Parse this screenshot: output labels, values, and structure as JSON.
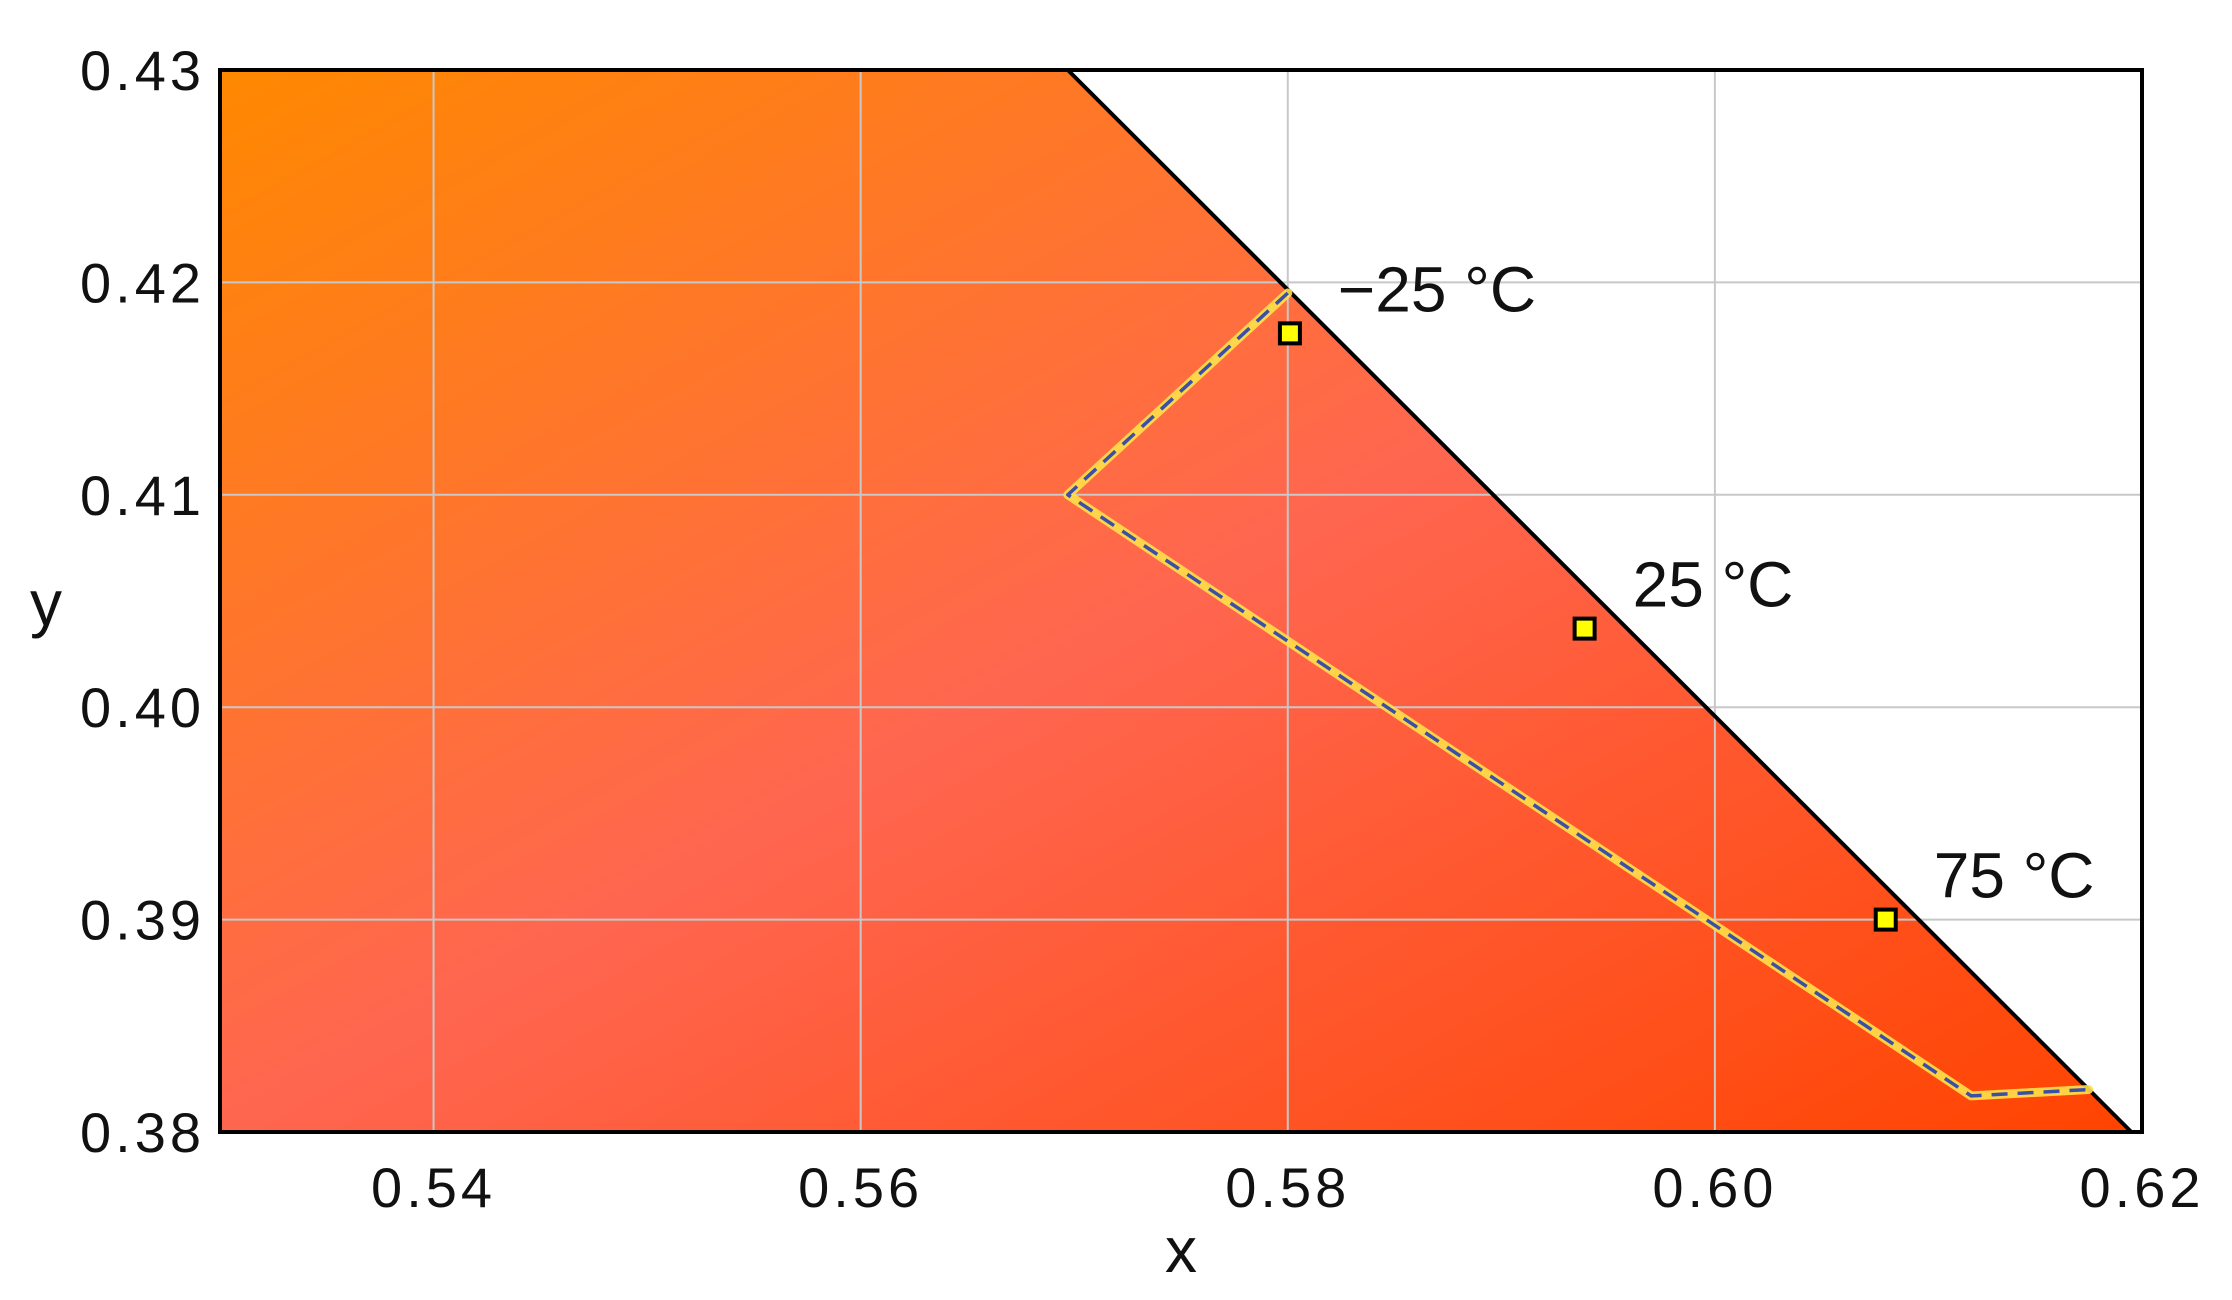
{
  "chart_data": {
    "type": "scatter",
    "xlabel": "x",
    "ylabel": "y",
    "xlim": [
      0.53,
      0.62
    ],
    "ylim": [
      0.38,
      0.43
    ],
    "xticks": [
      "0.54",
      "0.56",
      "0.58",
      "0.60",
      "0.62"
    ],
    "yticks": [
      "0.43",
      "0.42",
      "0.41",
      "0.40",
      "0.39",
      "0.38"
    ],
    "grid": true,
    "background_gradient": [
      "#ff8800",
      "#ff6650",
      "#ff4400"
    ],
    "spectral_locus": [
      [
        0.5697,
        0.43
      ],
      [
        0.6195,
        0.38
      ]
    ],
    "region_boundary": [
      [
        0.58,
        0.4195
      ],
      [
        0.5697,
        0.41
      ],
      [
        0.612,
        0.3817
      ],
      [
        0.6175,
        0.382
      ]
    ],
    "points": [
      {
        "label": "−25 °C",
        "x": 0.5801,
        "y": 0.4176
      },
      {
        "label": "25 °C",
        "x": 0.5939,
        "y": 0.4037
      },
      {
        "label": "75 °C",
        "x": 0.608,
        "y": 0.39
      }
    ],
    "colors": {
      "marker_fill": "#ffff00",
      "boundary_dash": "#3a4fa8",
      "boundary_glow": "#ffe04a"
    }
  }
}
